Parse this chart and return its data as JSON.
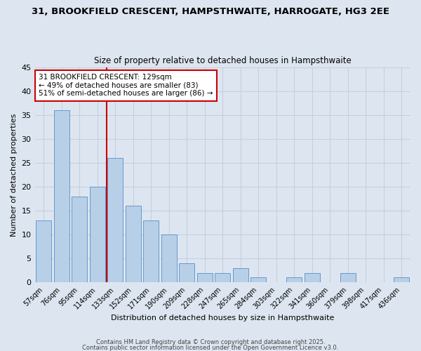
{
  "title": "31, BROOKFIELD CRESCENT, HAMPSTHWAITE, HARROGATE, HG3 2EE",
  "subtitle": "Size of property relative to detached houses in Hampsthwaite",
  "xlabel": "Distribution of detached houses by size in Hampsthwaite",
  "ylabel": "Number of detached properties",
  "bar_color": "#b8cfe8",
  "bar_edge_color": "#6699cc",
  "background_color": "#dde6f0",
  "grid_color": "#c5cfe0",
  "categories": [
    "57sqm",
    "76sqm",
    "95sqm",
    "114sqm",
    "133sqm",
    "152sqm",
    "171sqm",
    "190sqm",
    "209sqm",
    "228sqm",
    "247sqm",
    "265sqm",
    "284sqm",
    "303sqm",
    "322sqm",
    "341sqm",
    "360sqm",
    "379sqm",
    "398sqm",
    "417sqm",
    "436sqm"
  ],
  "values": [
    13,
    36,
    18,
    20,
    26,
    16,
    13,
    10,
    4,
    2,
    2,
    3,
    1,
    0,
    1,
    2,
    0,
    2,
    0,
    0,
    1
  ],
  "ylim": [
    0,
    45
  ],
  "yticks": [
    0,
    5,
    10,
    15,
    20,
    25,
    30,
    35,
    40,
    45
  ],
  "vline_idx": 4,
  "vline_color": "#cc0000",
  "annotation_title": "31 BROOKFIELD CRESCENT: 129sqm",
  "annotation_line1": "← 49% of detached houses are smaller (83)",
  "annotation_line2": "51% of semi-detached houses are larger (86) →",
  "annotation_box_color": "#ffffff",
  "annotation_box_edge": "#cc0000",
  "footer1": "Contains HM Land Registry data © Crown copyright and database right 2025.",
  "footer2": "Contains public sector information licensed under the Open Government Licence v3.0."
}
